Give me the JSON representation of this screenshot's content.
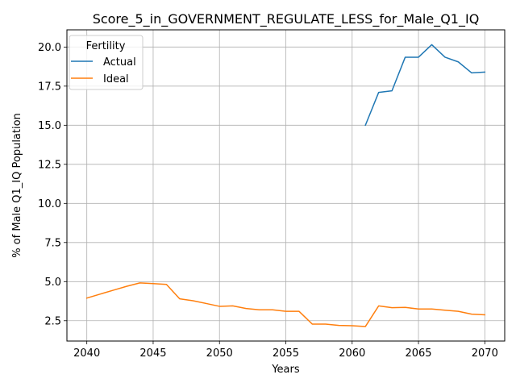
{
  "chart_data": {
    "type": "line",
    "title": "Score_5_in_GOVERNMENT_REGULATE_LESS_for_Male_Q1_IQ",
    "xlabel": "Years",
    "ylabel": "% of Male Q1_IQ Population",
    "xlim": [
      2038.5,
      2071.5
    ],
    "ylim": [
      1.2,
      21.1
    ],
    "xticks": [
      2040,
      2045,
      2050,
      2055,
      2060,
      2065,
      2070
    ],
    "yticks": [
      2.5,
      5.0,
      7.5,
      10.0,
      12.5,
      15.0,
      17.5,
      20.0
    ],
    "xtick_labels": [
      "2040",
      "2045",
      "2050",
      "2055",
      "2060",
      "2065",
      "2070"
    ],
    "ytick_labels": [
      "2.5",
      "5.0",
      "7.5",
      "10.0",
      "12.5",
      "15.0",
      "17.5",
      "20.0"
    ],
    "grid": true,
    "legend": {
      "title": "Fertility",
      "placement": "upper-left"
    },
    "series": [
      {
        "name": "Actual",
        "color": "#1f77b4",
        "x": [
          2061,
          2062,
          2063,
          2064,
          2065,
          2066,
          2067,
          2068,
          2069,
          2070
        ],
        "values": [
          15.0,
          17.1,
          17.2,
          19.35,
          19.35,
          20.15,
          19.35,
          19.05,
          18.35,
          18.4
        ]
      },
      {
        "name": "Ideal",
        "color": "#ff7f0e",
        "x": [
          2040,
          2041,
          2042,
          2043,
          2044,
          2045,
          2046,
          2047,
          2048,
          2049,
          2050,
          2051,
          2052,
          2053,
          2054,
          2055,
          2056,
          2057,
          2058,
          2059,
          2060,
          2061,
          2062,
          2063,
          2064,
          2065,
          2066,
          2067,
          2068,
          2069,
          2070
        ],
        "values": [
          3.95,
          4.2,
          4.45,
          4.7,
          4.92,
          4.87,
          4.82,
          3.9,
          3.78,
          3.6,
          3.42,
          3.45,
          3.28,
          3.2,
          3.2,
          3.1,
          3.1,
          2.28,
          2.28,
          2.2,
          2.18,
          2.13,
          3.45,
          3.33,
          3.35,
          3.25,
          3.25,
          3.17,
          3.1,
          2.92,
          2.88
        ]
      }
    ]
  }
}
